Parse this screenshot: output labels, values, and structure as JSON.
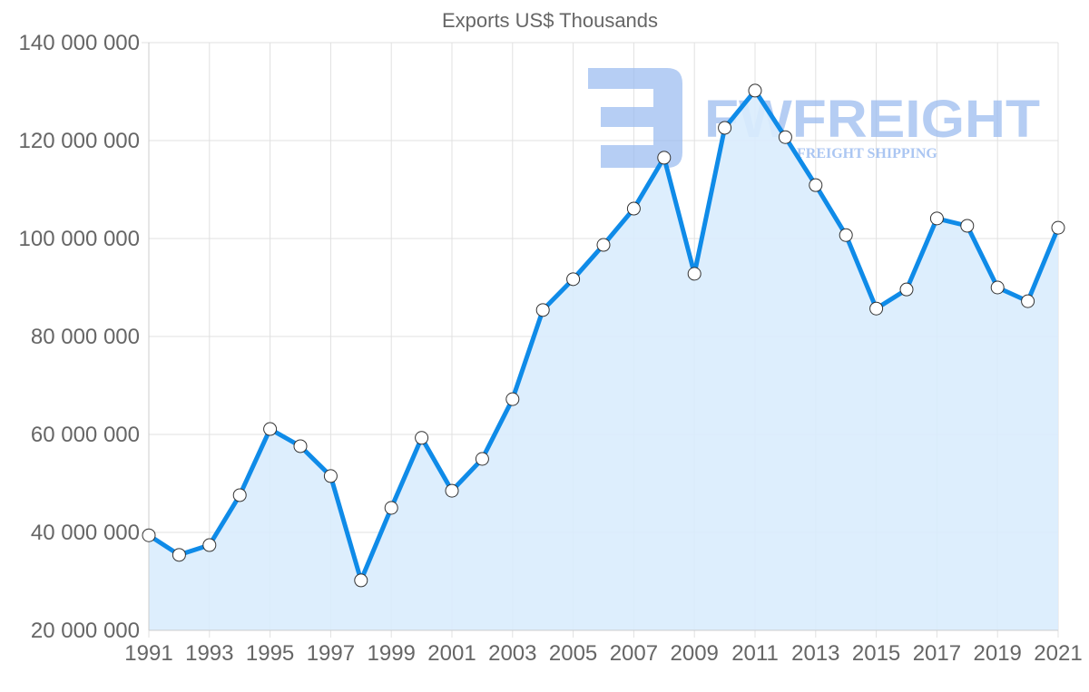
{
  "chart_data": {
    "type": "line",
    "title": "Exports US$ Thousands",
    "xlabel": "",
    "ylabel": "",
    "x": [
      1991,
      1992,
      1993,
      1994,
      1995,
      1996,
      1997,
      1998,
      1999,
      2000,
      2001,
      2002,
      2003,
      2004,
      2005,
      2006,
      2007,
      2008,
      2009,
      2010,
      2011,
      2012,
      2013,
      2014,
      2015,
      2016,
      2017,
      2018,
      2019,
      2020,
      2021
    ],
    "series": [
      {
        "name": "Exports US$ Thousands",
        "values": [
          39400000,
          35400000,
          37400000,
          47600000,
          61100000,
          57600000,
          51500000,
          30200000,
          45000000,
          59300000,
          48500000,
          55000000,
          67200000,
          85400000,
          91700000,
          98700000,
          106100000,
          116500000,
          92800000,
          122600000,
          130200000,
          120700000,
          110900000,
          100700000,
          85700000,
          89600000,
          104100000,
          102600000,
          90000000,
          87200000,
          102200000
        ]
      }
    ],
    "ylim": [
      20000000,
      140000000
    ],
    "xlim": [
      1991,
      2021
    ],
    "y_ticks": [
      "140 000 000",
      "120 000 000",
      "100 000 000",
      "80 000 000",
      "60 000 000",
      "40 000 000",
      "20 000 000"
    ],
    "y_tick_values": [
      140000000,
      120000000,
      100000000,
      80000000,
      60000000,
      40000000,
      20000000
    ],
    "x_ticks": [
      "1991",
      "1993",
      "1995",
      "1997",
      "1999",
      "2001",
      "2003",
      "2005",
      "2007",
      "2009",
      "2011",
      "2013",
      "2015",
      "2017",
      "2019",
      "2021"
    ],
    "grid": true,
    "legend": "none",
    "area_fill": true,
    "colors": {
      "line": "#0f8be8",
      "fill": "#d9ecfd",
      "grid": "#e0e0e0",
      "text": "#666666",
      "point_fill": "#ffffff",
      "point_stroke": "#333333"
    }
  },
  "watermark": {
    "brand": "FWFREIGHT",
    "tagline": "FREIGHT SHIPPING",
    "color": "#9dbdf0"
  }
}
